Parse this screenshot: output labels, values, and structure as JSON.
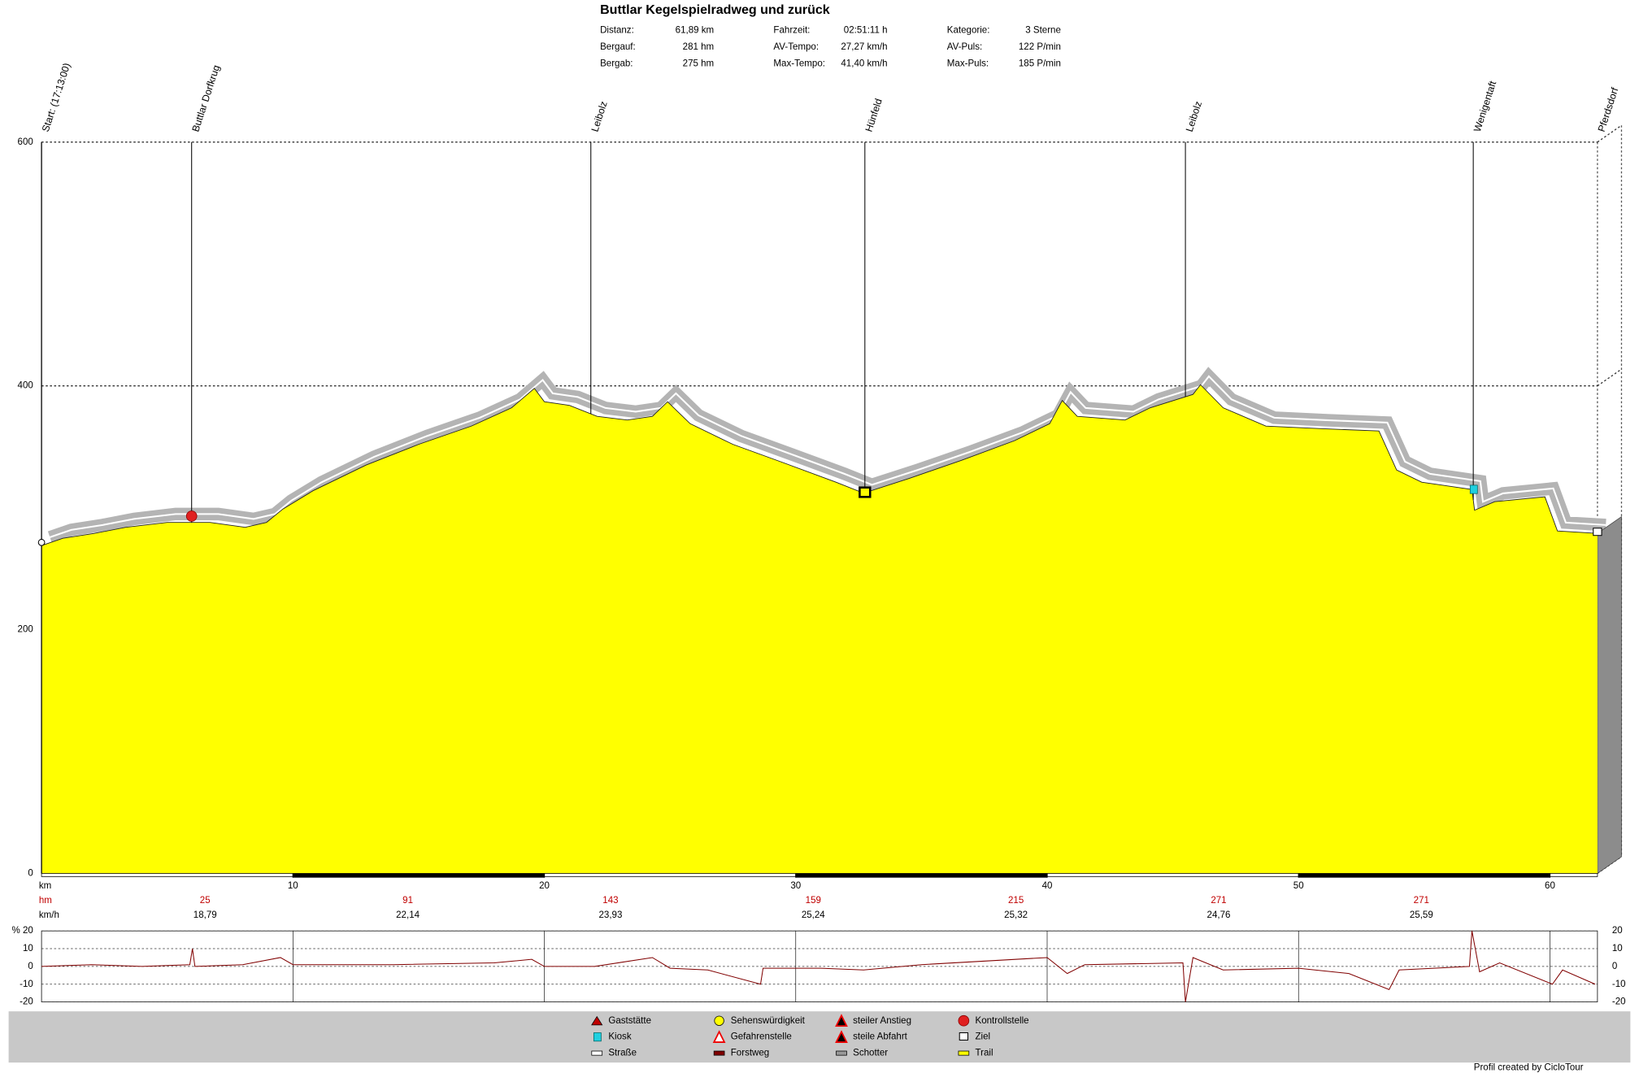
{
  "header": {
    "title": "Buttlar Kegelspielradweg und zurück",
    "stats": [
      [
        {
          "label": "Distanz:",
          "value": "61,89 km"
        },
        {
          "label": "Fahrzeit:",
          "value": "02:51:11 h"
        },
        {
          "label": "Kategorie:",
          "value": "3 Sterne"
        }
      ],
      [
        {
          "label": "Bergauf:",
          "value": "281 hm"
        },
        {
          "label": "AV-Tempo:",
          "value": "27,27 km/h"
        },
        {
          "label": "AV-Puls:",
          "value": "122 P/min"
        }
      ],
      [
        {
          "label": "Bergab:",
          "value": "275 hm"
        },
        {
          "label": "Max-Tempo:",
          "value": "41,40 km/h"
        },
        {
          "label": "Max-Puls:",
          "value": "185 P/min"
        }
      ]
    ]
  },
  "chart_data": [
    {
      "type": "area",
      "x_label": "km",
      "color": "#ffff00",
      "grid": true,
      "xlim": [
        0,
        61.89
      ],
      "ylim": [
        0,
        600
      ],
      "yticks": [
        0,
        200,
        400,
        600
      ],
      "xticks": [
        10,
        20,
        30,
        40,
        50,
        60
      ],
      "x": [
        0,
        0.85,
        2.1,
        3.35,
        5.0,
        6.7,
        8.1,
        8.95,
        9.6,
        10.8,
        12.9,
        15.0,
        17.1,
        18.7,
        19.6,
        20.0,
        21.0,
        22.1,
        23.3,
        24.3,
        24.9,
        25.8,
        27.5,
        29.5,
        31.6,
        32.7,
        34.5,
        36.6,
        38.7,
        40.1,
        40.6,
        41.2,
        43.1,
        44.1,
        45.8,
        46.1,
        47.0,
        48.7,
        50.8,
        53.2,
        53.9,
        54.9,
        56.9,
        57.0,
        57.8,
        59.8,
        60.3,
        61.89
      ],
      "values": [
        269,
        275,
        279,
        284,
        288,
        288,
        284,
        288,
        299,
        314,
        335,
        352,
        367,
        382,
        398,
        387,
        384,
        375,
        372,
        375,
        387,
        369,
        352,
        337,
        321,
        312,
        324,
        339,
        355,
        369,
        388,
        375,
        372,
        382,
        393,
        401,
        382,
        367,
        365,
        363,
        331,
        321,
        315,
        298,
        305,
        309,
        281,
        279
      ],
      "waypoints": [
        {
          "label": "Start: (17:13:00)",
          "km": 0
        },
        {
          "label": "Buttlar Dorfkrug",
          "km": 5.97
        },
        {
          "label": "Leibolz",
          "km": 21.85
        },
        {
          "label": "Hünfeld",
          "km": 32.75
        },
        {
          "label": "Leibolz",
          "km": 45.5
        },
        {
          "label": "Wenigentaft",
          "km": 56.95
        },
        {
          "label": "Pferdsdorf",
          "km": 61.89
        }
      ]
    },
    {
      "type": "line",
      "y_label": "%",
      "color": "#800000",
      "xlim": [
        0,
        61.89
      ],
      "ylim": [
        -20,
        20
      ],
      "yticks": [
        20,
        10,
        0,
        -10,
        -20
      ],
      "xticks": [
        10,
        20,
        30,
        40,
        50,
        60
      ],
      "x": [
        0,
        2,
        4,
        5.9,
        6.0,
        6.1,
        8,
        9.5,
        10,
        14,
        18,
        19.5,
        20,
        22,
        24.3,
        25,
        26.5,
        28.6,
        28.7,
        31,
        32.7,
        35,
        40,
        40.8,
        41.5,
        45.4,
        45.5,
        45.8,
        47,
        50,
        52,
        53.6,
        54,
        56.8,
        56.9,
        57.2,
        58,
        60.1,
        60.5,
        61.8
      ],
      "values": [
        0,
        1,
        0,
        1,
        10,
        0,
        1,
        5,
        1,
        1,
        2,
        4,
        0,
        0,
        5,
        -1,
        -2,
        -10,
        -1,
        -1,
        -2,
        1,
        5,
        -4,
        1,
        2,
        -20,
        5,
        -2,
        -1,
        -4,
        -13,
        -2,
        0,
        20,
        -3,
        2,
        -10,
        -2,
        -10
      ]
    }
  ],
  "segments": {
    "hm_label": "hm",
    "speed_label": "km/h",
    "hm": [
      25,
      91,
      143,
      159,
      215,
      271,
      271
    ],
    "speed": [
      "18,79",
      "22,14",
      "23,93",
      "25,24",
      "25,32",
      "24,76",
      "25,59"
    ]
  },
  "legend": [
    "Gaststätte",
    "Kiosk",
    "Straße",
    "Sehenswürdigkeit",
    "Gefahrenstelle",
    "Forstweg",
    "steiler Anstieg",
    "steile Abfahrt",
    "Schotter",
    "Kontrollstelle",
    "Ziel",
    "Trail"
  ],
  "footer": "Profil created by CicloTour"
}
